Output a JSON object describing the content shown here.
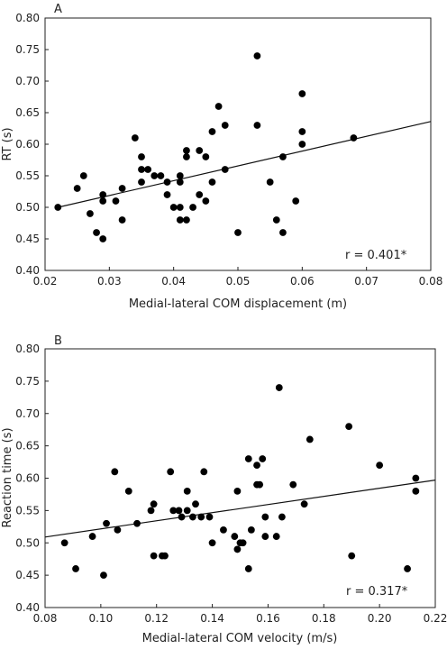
{
  "chart_data": [
    {
      "type": "scatter",
      "panel_label": "A",
      "xlabel": "Medial-lateral COM displacement (m)",
      "ylabel": "RT (s)",
      "xlim": [
        0.02,
        0.08
      ],
      "ylim": [
        0.4,
        0.8
      ],
      "xticks": [
        "0.02",
        "0.03",
        "0.04",
        "0.05",
        "0.06",
        "0.07",
        "0.08"
      ],
      "yticks": [
        "0.40",
        "0.45",
        "0.50",
        "0.55",
        "0.60",
        "0.65",
        "0.70",
        "0.75",
        "0.80"
      ],
      "annotation": "r = 0.401*",
      "fit_line": {
        "x": [
          0.022,
          0.08
        ],
        "y": [
          0.5,
          0.636
        ]
      },
      "points": [
        [
          0.022,
          0.5
        ],
        [
          0.025,
          0.53
        ],
        [
          0.026,
          0.55
        ],
        [
          0.027,
          0.49
        ],
        [
          0.028,
          0.46
        ],
        [
          0.029,
          0.52
        ],
        [
          0.029,
          0.51
        ],
        [
          0.029,
          0.45
        ],
        [
          0.031,
          0.51
        ],
        [
          0.032,
          0.53
        ],
        [
          0.032,
          0.48
        ],
        [
          0.034,
          0.61
        ],
        [
          0.035,
          0.58
        ],
        [
          0.035,
          0.56
        ],
        [
          0.035,
          0.54
        ],
        [
          0.036,
          0.56
        ],
        [
          0.037,
          0.55
        ],
        [
          0.038,
          0.55
        ],
        [
          0.039,
          0.54
        ],
        [
          0.039,
          0.52
        ],
        [
          0.04,
          0.5
        ],
        [
          0.041,
          0.55
        ],
        [
          0.041,
          0.54
        ],
        [
          0.041,
          0.5
        ],
        [
          0.041,
          0.48
        ],
        [
          0.042,
          0.59
        ],
        [
          0.042,
          0.58
        ],
        [
          0.042,
          0.48
        ],
        [
          0.043,
          0.5
        ],
        [
          0.044,
          0.59
        ],
        [
          0.044,
          0.52
        ],
        [
          0.045,
          0.58
        ],
        [
          0.045,
          0.51
        ],
        [
          0.046,
          0.62
        ],
        [
          0.046,
          0.54
        ],
        [
          0.047,
          0.66
        ],
        [
          0.048,
          0.63
        ],
        [
          0.048,
          0.56
        ],
        [
          0.05,
          0.46
        ],
        [
          0.053,
          0.74
        ],
        [
          0.053,
          0.63
        ],
        [
          0.055,
          0.54
        ],
        [
          0.056,
          0.48
        ],
        [
          0.057,
          0.58
        ],
        [
          0.057,
          0.46
        ],
        [
          0.059,
          0.51
        ],
        [
          0.06,
          0.68
        ],
        [
          0.06,
          0.62
        ],
        [
          0.06,
          0.6
        ],
        [
          0.068,
          0.61
        ]
      ]
    },
    {
      "type": "scatter",
      "panel_label": "B",
      "xlabel": "Medial-lateral COM velocity (m/s)",
      "ylabel": "Reaction time (s)",
      "xlim": [
        0.08,
        0.22
      ],
      "ylim": [
        0.4,
        0.8
      ],
      "xticks": [
        "0.08",
        "0.10",
        "0.12",
        "0.14",
        "0.16",
        "0.18",
        "0.20",
        "0.22"
      ],
      "yticks": [
        "0.40",
        "0.45",
        "0.50",
        "0.55",
        "0.60",
        "0.65",
        "0.70",
        "0.75",
        "0.80"
      ],
      "annotation": "r = 0.317*",
      "fit_line": {
        "x": [
          0.08,
          0.22
        ],
        "y": [
          0.509,
          0.597
        ]
      },
      "points": [
        [
          0.087,
          0.5
        ],
        [
          0.091,
          0.46
        ],
        [
          0.097,
          0.51
        ],
        [
          0.101,
          0.45
        ],
        [
          0.102,
          0.53
        ],
        [
          0.105,
          0.61
        ],
        [
          0.106,
          0.52
        ],
        [
          0.11,
          0.58
        ],
        [
          0.113,
          0.53
        ],
        [
          0.118,
          0.55
        ],
        [
          0.119,
          0.48
        ],
        [
          0.119,
          0.56
        ],
        [
          0.122,
          0.48
        ],
        [
          0.123,
          0.48
        ],
        [
          0.125,
          0.61
        ],
        [
          0.126,
          0.55
        ],
        [
          0.128,
          0.55
        ],
        [
          0.129,
          0.54
        ],
        [
          0.131,
          0.58
        ],
        [
          0.131,
          0.55
        ],
        [
          0.133,
          0.54
        ],
        [
          0.134,
          0.56
        ],
        [
          0.136,
          0.54
        ],
        [
          0.137,
          0.61
        ],
        [
          0.139,
          0.54
        ],
        [
          0.14,
          0.5
        ],
        [
          0.144,
          0.52
        ],
        [
          0.148,
          0.51
        ],
        [
          0.149,
          0.58
        ],
        [
          0.149,
          0.49
        ],
        [
          0.15,
          0.5
        ],
        [
          0.151,
          0.5
        ],
        [
          0.153,
          0.46
        ],
        [
          0.153,
          0.63
        ],
        [
          0.154,
          0.52
        ],
        [
          0.156,
          0.59
        ],
        [
          0.156,
          0.62
        ],
        [
          0.157,
          0.59
        ],
        [
          0.158,
          0.63
        ],
        [
          0.159,
          0.54
        ],
        [
          0.159,
          0.51
        ],
        [
          0.163,
          0.51
        ],
        [
          0.164,
          0.74
        ],
        [
          0.165,
          0.54
        ],
        [
          0.169,
          0.59
        ],
        [
          0.173,
          0.56
        ],
        [
          0.175,
          0.66
        ],
        [
          0.189,
          0.68
        ],
        [
          0.19,
          0.48
        ],
        [
          0.2,
          0.62
        ],
        [
          0.21,
          0.46
        ],
        [
          0.213,
          0.58
        ],
        [
          0.213,
          0.6
        ]
      ]
    }
  ]
}
